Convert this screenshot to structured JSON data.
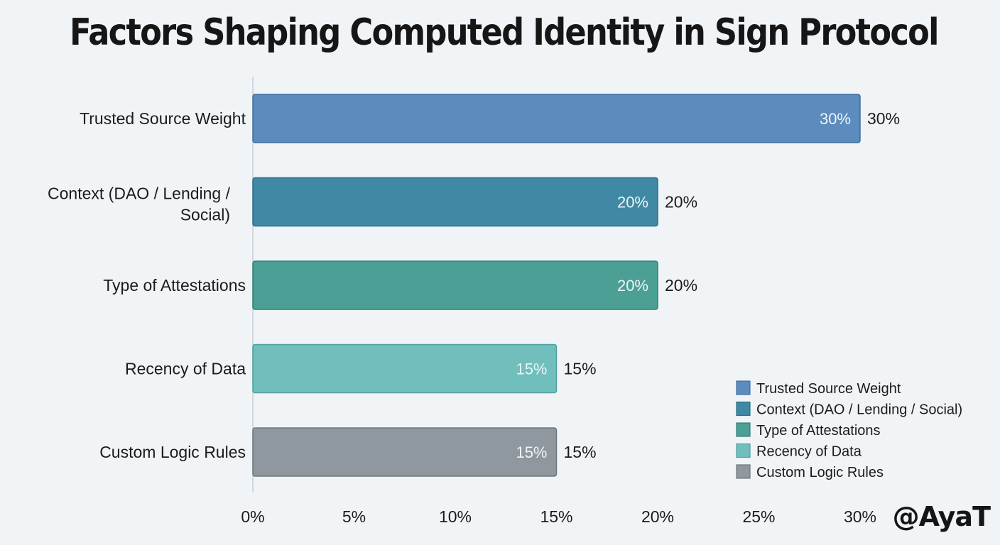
{
  "chart_data": {
    "type": "bar",
    "orientation": "horizontal",
    "title": "Factors Shaping Computed Identity in Sign Protocol",
    "categories": [
      "Trusted Source Weight",
      "Context (DAO / Lending / Social)",
      "Type of Attestations",
      "Recency of Data",
      "Custom Logic Rules"
    ],
    "category_lines": [
      [
        "Trusted Source Weight"
      ],
      [
        "Context (DAO / Lending /",
        "Social)"
      ],
      [
        "Type of Attestations"
      ],
      [
        "Recency of Data"
      ],
      [
        "Custom Logic Rules"
      ]
    ],
    "values": [
      30,
      20,
      20,
      15,
      15
    ],
    "value_labels": [
      "30%",
      "20%",
      "20%",
      "15%",
      "15%"
    ],
    "colors": [
      "#5b8cbd",
      "#3f89a5",
      "#4b9f95",
      "#70bfbd",
      "#8f989e"
    ],
    "border_colors": [
      "#3f6f9e",
      "#2d6f86",
      "#357d74",
      "#4f9f9c",
      "#6f777c"
    ],
    "xlim": [
      0,
      30
    ],
    "xticks": [
      0,
      5,
      10,
      15,
      20,
      25,
      30
    ],
    "xtick_labels": [
      "0%",
      "5%",
      "10%",
      "15%",
      "20%",
      "25%",
      "30%"
    ],
    "xlabel": "",
    "ylabel": "",
    "grid": false,
    "legend": {
      "position": "bottom-right",
      "entries": [
        "Trusted Source Weight",
        "Context (DAO / Lending / Social)",
        "Type of Attestations",
        "Recency of Data",
        "Custom Logic Rules"
      ]
    }
  },
  "watermark": "@AyaT"
}
